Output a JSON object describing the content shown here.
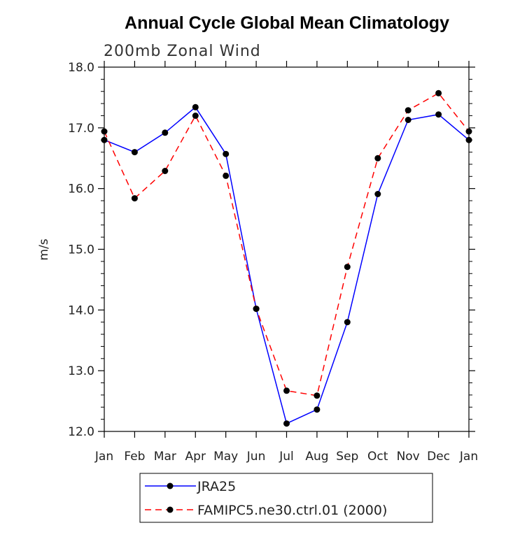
{
  "chart_data": {
    "type": "line",
    "title": "Annual Cycle Global Mean Climatology",
    "subtitle": "200mb Zonal Wind",
    "xlabel": "",
    "ylabel": "m/s",
    "categories": [
      "Jan",
      "Feb",
      "Mar",
      "Apr",
      "May",
      "Jun",
      "Jul",
      "Aug",
      "Sep",
      "Oct",
      "Nov",
      "Dec",
      "Jan"
    ],
    "ylim": [
      12.0,
      18.0
    ],
    "yticks": [
      "12.0",
      "13.0",
      "14.0",
      "15.0",
      "16.0",
      "17.0",
      "18.0"
    ],
    "grid": false,
    "legend_position": "bottom",
    "series": [
      {
        "name": "JRA25",
        "color": "#0000ff",
        "style": "solid",
        "values": [
          16.8,
          16.6,
          16.92,
          17.34,
          16.57,
          14.02,
          12.13,
          12.36,
          13.8,
          15.91,
          17.13,
          17.22,
          16.8
        ]
      },
      {
        "name": "FAMIPC5.ne30.ctrl.01 (2000)",
        "color": "#ff0000",
        "style": "dashed",
        "values": [
          16.94,
          15.84,
          16.29,
          17.2,
          16.21,
          14.02,
          12.67,
          12.59,
          14.71,
          16.5,
          17.29,
          17.57,
          16.94
        ]
      }
    ]
  }
}
